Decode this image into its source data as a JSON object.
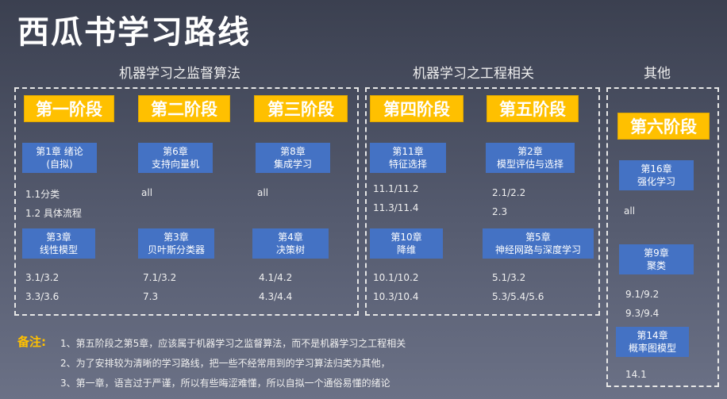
{
  "title": "西瓜书学习路线",
  "sections": {
    "supervised": "机器学习之监督算法",
    "engineering": "机器学习之工程相关",
    "other": "其他"
  },
  "stages": {
    "s1": "第一阶段",
    "s2": "第二阶段",
    "s3": "第三阶段",
    "s4": "第四阶段",
    "s5": "第五阶段",
    "s6": "第六阶段"
  },
  "chapters": {
    "c1": {
      "num": "第1章 绪论",
      "name": "(自拟)"
    },
    "c6": {
      "num": "第6章",
      "name": "支持向量机"
    },
    "c8": {
      "num": "第8章",
      "name": "集成学习"
    },
    "c11": {
      "num": "第11章",
      "name": "特征选择"
    },
    "c2": {
      "num": "第2章",
      "name": "模型评估与选择"
    },
    "c16": {
      "num": "第16章",
      "name": "强化学习"
    },
    "c3a": {
      "num": "第3章",
      "name": "线性模型"
    },
    "c3b": {
      "num": "第3章",
      "name": "贝叶斯分类器"
    },
    "c4": {
      "num": "第4章",
      "name": "决策树"
    },
    "c10": {
      "num": "第10章",
      "name": "降维"
    },
    "c5": {
      "num": "第5章",
      "name": "神经网路与深度学习"
    },
    "c9": {
      "num": "第9章",
      "name": "聚类"
    },
    "c14": {
      "num": "第14章",
      "name": "概率图模型"
    }
  },
  "sections_list": {
    "c1": [
      "1.1分类",
      "1.2 具体流程"
    ],
    "c6": [
      "all"
    ],
    "c8": [
      "all"
    ],
    "c11": [
      "11.1/11.2",
      "11.3/11.4"
    ],
    "c2": [
      "2.1/2.2",
      "2.3"
    ],
    "c16": [
      "all"
    ],
    "c3a": [
      "3.1/3.2",
      "3.3/3.6"
    ],
    "c3b": [
      "7.1/3.2",
      "7.3"
    ],
    "c4": [
      "4.1/4.2",
      "4.3/4.4"
    ],
    "c10": [
      "10.1/10.2",
      "10.3/10.4"
    ],
    "c5": [
      "5.1/3.2",
      "5.3/5.4/5.6"
    ],
    "c9": [
      "9.1/9.2",
      "9.3/9.4"
    ],
    "c14": [
      "14.1"
    ]
  },
  "notes": {
    "label": "备注:",
    "n1": "1、第五阶段之第5章，应该属于机器学习之监督算法，而不是机器学习之工程相关",
    "n2": "2、为了安排较为清晰的学习路线，把一些不经常用到的学习算法归类为其他，",
    "n3": "3、第一章，语言过于严谨，所以有些晦涩难懂，所以自拟一个通俗易懂的绪论"
  },
  "colors": {
    "stage": "#ffc000",
    "chapter": "#4472c4",
    "note_label": "#ffc000"
  }
}
